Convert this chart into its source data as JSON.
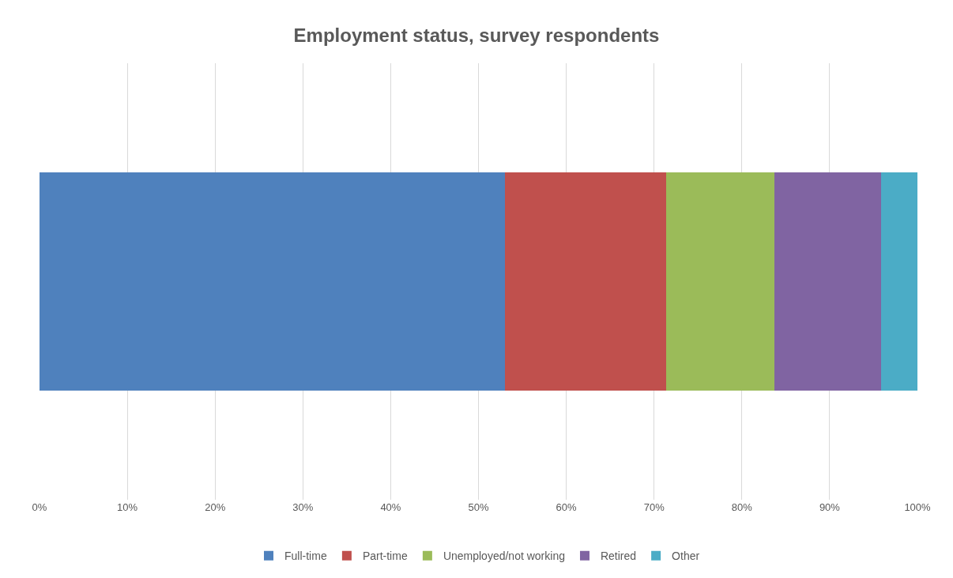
{
  "chart_data": {
    "type": "bar",
    "title": "Employment status, survey respondents",
    "orientation": "horizontal",
    "stacked": true,
    "categories": [
      null
    ],
    "series": [
      {
        "name": "Full-time",
        "color": "#4f81bd",
        "values": [
          53.0
        ]
      },
      {
        "name": "Part-time",
        "color": "#c0504d",
        "values": [
          18.4
        ]
      },
      {
        "name": "Unemployed/not working",
        "color": "#9bbb59",
        "values": [
          12.3
        ]
      },
      {
        "name": "Retired",
        "color": "#8064a2",
        "values": [
          12.2
        ]
      },
      {
        "name": "Other",
        "color": "#4bacc6",
        "values": [
          4.1
        ]
      }
    ],
    "xlim": [
      0,
      100
    ],
    "xticks": [
      {
        "value": 0,
        "label": "0%"
      },
      {
        "value": 10,
        "label": "10%"
      },
      {
        "value": 20,
        "label": "20%"
      },
      {
        "value": 30,
        "label": "30%"
      },
      {
        "value": 40,
        "label": "40%"
      },
      {
        "value": 50,
        "label": "50%"
      },
      {
        "value": 60,
        "label": "60%"
      },
      {
        "value": 70,
        "label": "70%"
      },
      {
        "value": 80,
        "label": "80%"
      },
      {
        "value": 90,
        "label": "90%"
      },
      {
        "value": 100,
        "label": "100%"
      }
    ],
    "grid": "x",
    "legend": "bottom",
    "tick_labels": "x"
  }
}
